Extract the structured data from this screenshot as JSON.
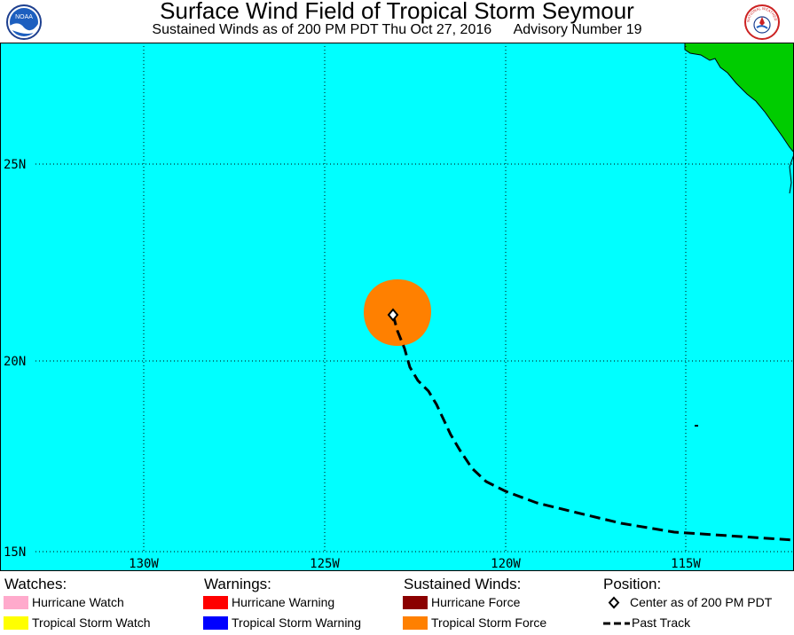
{
  "header": {
    "title": "Surface Wind Field of Tropical Storm Seymour",
    "subtitle_time": "Sustained Winds as of 200 PM PDT Thu Oct 27, 2016",
    "subtitle_advisory": "Advisory Number 19",
    "left_logo": {
      "icon": "noaa-logo-icon",
      "text": "NOAA"
    },
    "right_logo": {
      "icon": "nws-logo-icon",
      "text": "NATIONAL WEATHER SERVICE"
    }
  },
  "map": {
    "ocean_color": "#00ffff",
    "land_color": "#00cc00",
    "grid_color": "#000000",
    "lat_labels": [
      "25N",
      "20N",
      "15N"
    ],
    "lon_labels": [
      "130W",
      "125W",
      "120W",
      "115W"
    ],
    "wind_field": {
      "category": "Tropical Storm Force",
      "color": "#ff8000"
    },
    "center_marker": {
      "icon": "diamond-icon"
    },
    "past_track": {
      "style": "dashed",
      "color": "#000000"
    }
  },
  "legend": {
    "watches": {
      "heading": "Watches:",
      "items": [
        {
          "label": "Hurricane Watch",
          "color": "#ffaacc"
        },
        {
          "label": "Tropical Storm Watch",
          "color": "#ffff00"
        }
      ]
    },
    "warnings": {
      "heading": "Warnings:",
      "items": [
        {
          "label": "Hurricane Warning",
          "color": "#ff0000"
        },
        {
          "label": "Tropical Storm Warning",
          "color": "#0000ff"
        }
      ]
    },
    "winds": {
      "heading": "Sustained Winds:",
      "items": [
        {
          "label": "Hurricane Force",
          "color": "#8b0000"
        },
        {
          "label": "Tropical Storm Force",
          "color": "#ff8000"
        }
      ]
    },
    "position": {
      "heading": "Position:",
      "center_label": "Center as of 200 PM PDT",
      "track_label": "Past Track"
    }
  }
}
